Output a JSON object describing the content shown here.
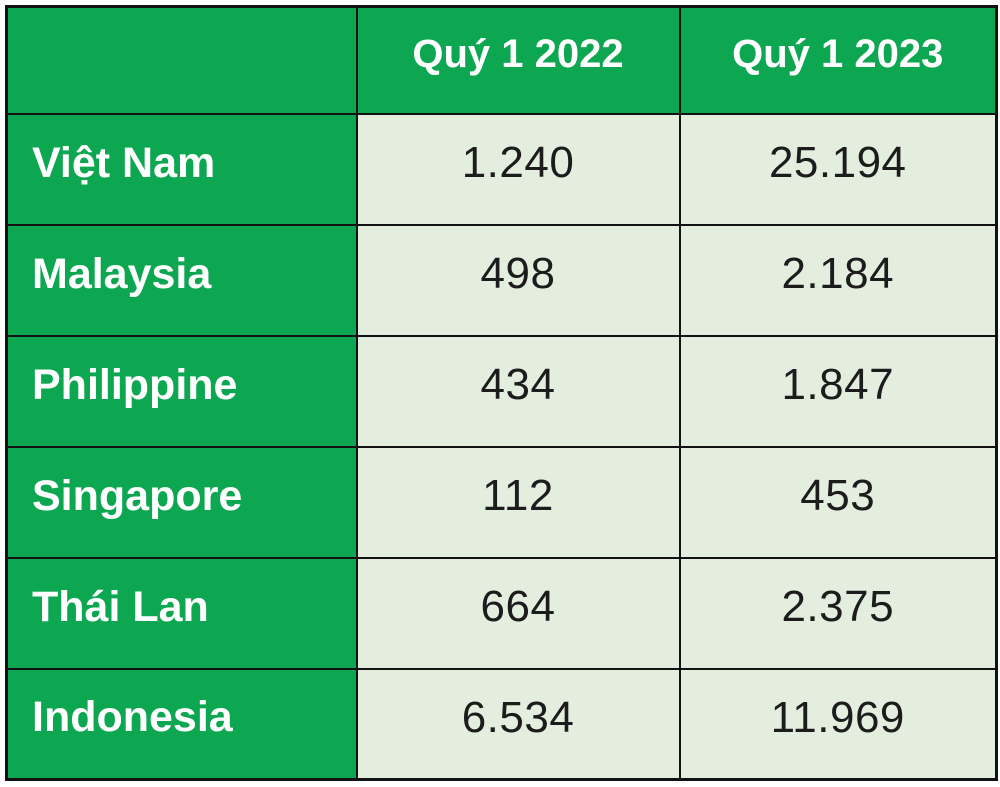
{
  "table": {
    "columns": [
      "Quý 1 2022",
      "Quý 1 2023"
    ],
    "rows": [
      {
        "country": "Việt Nam",
        "q1_2022": "1.240",
        "q1_2023": "25.194"
      },
      {
        "country": "Malaysia",
        "q1_2022": "498",
        "q1_2023": "2.184"
      },
      {
        "country": "Philippine",
        "q1_2022": "434",
        "q1_2023": "1.847"
      },
      {
        "country": "Singapore",
        "q1_2022": "112",
        "q1_2023": "453"
      },
      {
        "country": "Thái Lan",
        "q1_2022": "664",
        "q1_2023": "2.375"
      },
      {
        "country": "Indonesia",
        "q1_2022": "6.534",
        "q1_2023": "11.969"
      }
    ]
  },
  "colors": {
    "green": "#0ca750",
    "cell_bg": "#e4eedf",
    "border": "#121212",
    "header_text": "#ffffff",
    "value_text": "#1c1c1c",
    "page_bg": "#ffffff"
  },
  "chart_data": {
    "type": "table",
    "title": "",
    "categories": [
      "Việt Nam",
      "Malaysia",
      "Philippine",
      "Singapore",
      "Thái Lan",
      "Indonesia"
    ],
    "series": [
      {
        "name": "Quý 1 2022",
        "values": [
          1240,
          498,
          434,
          112,
          664,
          6534
        ]
      },
      {
        "name": "Quý 1 2023",
        "values": [
          25194,
          2184,
          1847,
          453,
          2375,
          11969
        ]
      }
    ],
    "layout": {
      "header_row_background": "#0ca750",
      "label_column_background": "#0ca750",
      "value_cells_background": "#e4eedf",
      "grid": "black borders",
      "number_format": "period as thousands separator"
    }
  }
}
